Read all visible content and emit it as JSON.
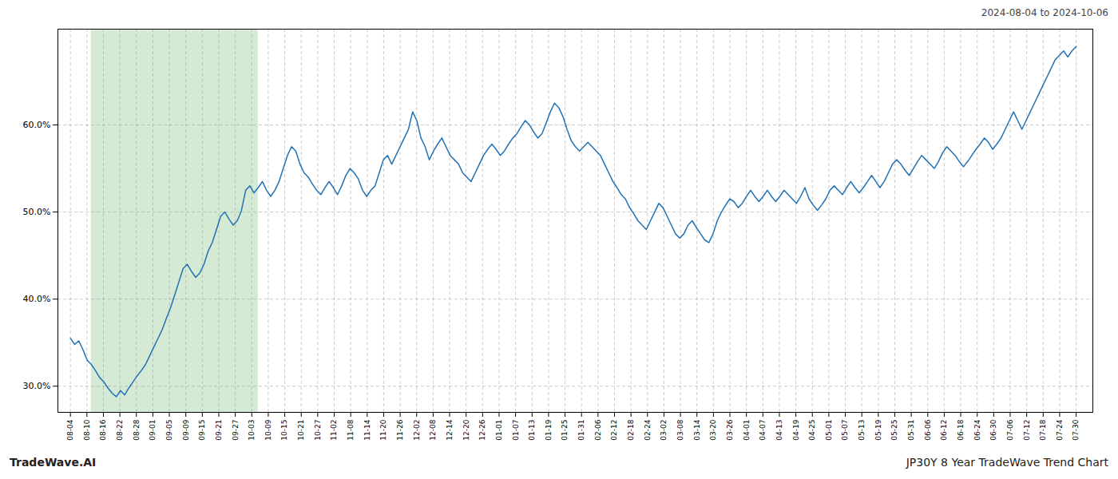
{
  "chart_data": {
    "type": "line",
    "title": "2024-08-04 to 2024-10-06",
    "annotations": [
      "TradeWave.AI",
      "JP30Y 8 Year TradeWave Trend Chart"
    ],
    "color": "#2171b5",
    "grid": true,
    "xlim": [
      -3,
      245
    ],
    "xticks": [
      {
        "value": 0,
        "label": "08-04"
      },
      {
        "value": 3.9508,
        "label": "08-10"
      },
      {
        "value": 7.9016,
        "label": "08-16"
      },
      {
        "value": 11.8525,
        "label": "08-22"
      },
      {
        "value": 15.8033,
        "label": "08-28"
      },
      {
        "value": 19.7541,
        "label": "09-01"
      },
      {
        "value": 23.7049,
        "label": "09-05"
      },
      {
        "value": 27.6557,
        "label": "09-09"
      },
      {
        "value": 31.6066,
        "label": "09-15"
      },
      {
        "value": 35.5574,
        "label": "09-21"
      },
      {
        "value": 39.5082,
        "label": "09-27"
      },
      {
        "value": 43.459,
        "label": "10-03"
      },
      {
        "value": 47.4098,
        "label": "10-09"
      },
      {
        "value": 51.3607,
        "label": "10-15"
      },
      {
        "value": 55.3115,
        "label": "10-21"
      },
      {
        "value": 59.2623,
        "label": "10-27"
      },
      {
        "value": 63.2131,
        "label": "11-02"
      },
      {
        "value": 67.1639,
        "label": "11-08"
      },
      {
        "value": 71.1148,
        "label": "11-14"
      },
      {
        "value": 75.0656,
        "label": "11-20"
      },
      {
        "value": 79.0164,
        "label": "11-26"
      },
      {
        "value": 82.9672,
        "label": "12-02"
      },
      {
        "value": 86.918,
        "label": "12-08"
      },
      {
        "value": 90.8689,
        "label": "12-14"
      },
      {
        "value": 94.8197,
        "label": "12-20"
      },
      {
        "value": 98.7705,
        "label": "12-26"
      },
      {
        "value": 102.7213,
        "label": "01-01"
      },
      {
        "value": 106.6721,
        "label": "01-07"
      },
      {
        "value": 110.623,
        "label": "01-13"
      },
      {
        "value": 114.5738,
        "label": "01-19"
      },
      {
        "value": 118.5246,
        "label": "01-25"
      },
      {
        "value": 122.4754,
        "label": "01-31"
      },
      {
        "value": 126.4262,
        "label": "02-06"
      },
      {
        "value": 130.377,
        "label": "02-12"
      },
      {
        "value": 134.3279,
        "label": "02-18"
      },
      {
        "value": 138.2787,
        "label": "02-24"
      },
      {
        "value": 142.2295,
        "label": "03-02"
      },
      {
        "value": 146.1803,
        "label": "03-08"
      },
      {
        "value": 150.1311,
        "label": "03-14"
      },
      {
        "value": 154.082,
        "label": "03-20"
      },
      {
        "value": 158.0328,
        "label": "03-26"
      },
      {
        "value": 161.9836,
        "label": "04-01"
      },
      {
        "value": 165.9344,
        "label": "04-07"
      },
      {
        "value": 169.8852,
        "label": "04-13"
      },
      {
        "value": 173.8361,
        "label": "04-19"
      },
      {
        "value": 177.7869,
        "label": "04-25"
      },
      {
        "value": 181.7377,
        "label": "05-01"
      },
      {
        "value": 185.6885,
        "label": "05-07"
      },
      {
        "value": 189.6393,
        "label": "05-13"
      },
      {
        "value": 193.5902,
        "label": "05-19"
      },
      {
        "value": 197.541,
        "label": "05-25"
      },
      {
        "value": 201.4918,
        "label": "05-31"
      },
      {
        "value": 205.4426,
        "label": "06-06"
      },
      {
        "value": 209.3934,
        "label": "06-12"
      },
      {
        "value": 213.3443,
        "label": "06-18"
      },
      {
        "value": 217.2951,
        "label": "06-24"
      },
      {
        "value": 221.2459,
        "label": "06-30"
      },
      {
        "value": 225.1967,
        "label": "07-06"
      },
      {
        "value": 229.1475,
        "label": "07-12"
      },
      {
        "value": 233.0984,
        "label": "07-18"
      },
      {
        "value": 237.0492,
        "label": "07-24"
      },
      {
        "value": 241,
        "label": "07-30"
      }
    ],
    "ylim": [
      27,
      71
    ],
    "yticks": [
      {
        "value": 30.0,
        "label": "30.0%"
      },
      {
        "value": 40.0,
        "label": "40.0%"
      },
      {
        "value": 50.0,
        "label": "50.0%"
      },
      {
        "value": 60.0,
        "label": "60.0%"
      }
    ],
    "shade": {
      "start": 5,
      "end": 45,
      "color": "#d5ead5"
    },
    "values": [
      35.5,
      34.8,
      35.2,
      34.2,
      33.0,
      32.5,
      31.8,
      31.0,
      30.5,
      29.8,
      29.2,
      28.8,
      29.5,
      29.0,
      29.8,
      30.5,
      31.2,
      31.8,
      32.5,
      33.5,
      34.5,
      35.5,
      36.5,
      37.8,
      39.0,
      40.5,
      42.0,
      43.5,
      44.0,
      43.2,
      42.5,
      43.0,
      44.0,
      45.5,
      46.5,
      48.0,
      49.5,
      50.0,
      49.2,
      48.5,
      49.0,
      50.2,
      52.5,
      53.0,
      52.2,
      52.8,
      53.5,
      52.5,
      51.8,
      52.5,
      53.5,
      55.0,
      56.5,
      57.5,
      57.0,
      55.5,
      54.5,
      54.0,
      53.2,
      52.5,
      52.0,
      52.8,
      53.5,
      52.8,
      52.0,
      53.0,
      54.2,
      55.0,
      54.5,
      53.8,
      52.5,
      51.8,
      52.5,
      53.0,
      54.5,
      56.0,
      56.5,
      55.5,
      56.5,
      57.5,
      58.5,
      59.5,
      61.5,
      60.5,
      58.5,
      57.5,
      56.0,
      57.0,
      57.8,
      58.5,
      57.5,
      56.5,
      56.0,
      55.5,
      54.5,
      54.0,
      53.5,
      54.5,
      55.5,
      56.5,
      57.2,
      57.8,
      57.2,
      56.5,
      57.0,
      57.8,
      58.5,
      59.0,
      59.8,
      60.5,
      60.0,
      59.2,
      58.5,
      59.0,
      60.2,
      61.5,
      62.5,
      62.0,
      61.0,
      59.5,
      58.2,
      57.5,
      57.0,
      57.5,
      58.0,
      57.5,
      57.0,
      56.5,
      55.5,
      54.5,
      53.5,
      52.8,
      52.0,
      51.5,
      50.5,
      49.8,
      49.0,
      48.5,
      48.0,
      49.0,
      50.0,
      51.0,
      50.5,
      49.5,
      48.5,
      47.5,
      47.0,
      47.5,
      48.5,
      49.0,
      48.2,
      47.5,
      46.8,
      46.5,
      47.5,
      49.0,
      50.0,
      50.8,
      51.5,
      51.2,
      50.5,
      51.0,
      51.8,
      52.5,
      51.8,
      51.2,
      51.8,
      52.5,
      51.8,
      51.2,
      51.8,
      52.5,
      52.0,
      51.5,
      51.0,
      51.8,
      52.8,
      51.5,
      50.8,
      50.2,
      50.8,
      51.5,
      52.5,
      53.0,
      52.5,
      52.0,
      52.8,
      53.5,
      52.8,
      52.2,
      52.8,
      53.5,
      54.2,
      53.5,
      52.8,
      53.5,
      54.5,
      55.5,
      56.0,
      55.5,
      54.8,
      54.2,
      55.0,
      55.8,
      56.5,
      56.0,
      55.5,
      55.0,
      55.8,
      56.8,
      57.5,
      57.0,
      56.5,
      55.8,
      55.2,
      55.8,
      56.5,
      57.2,
      57.8,
      58.5,
      58.0,
      57.2,
      57.8,
      58.5,
      59.5,
      60.5,
      61.5,
      60.5,
      59.5,
      60.5,
      61.5,
      62.5,
      63.5,
      64.5,
      65.5,
      66.5,
      67.5,
      68.0,
      68.5,
      67.8,
      68.5,
      69.0
    ]
  }
}
